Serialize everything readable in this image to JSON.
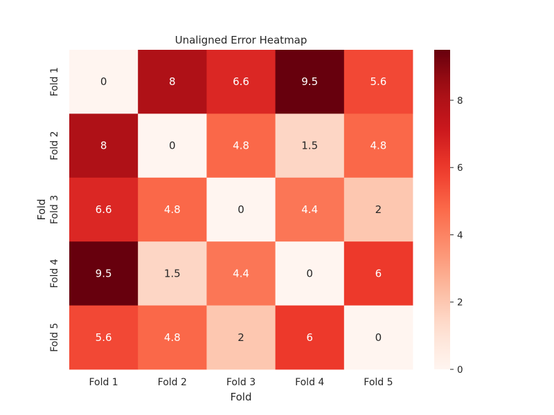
{
  "chart_data": {
    "type": "heatmap",
    "title": "Unaligned Error Heatmap",
    "xlabel": "Fold",
    "ylabel": "Fold",
    "x_categories": [
      "Fold 1",
      "Fold 2",
      "Fold 3",
      "Fold 4",
      "Fold 5"
    ],
    "y_categories": [
      "Fold 1",
      "Fold 2",
      "Fold 3",
      "Fold 4",
      "Fold 5"
    ],
    "values": [
      [
        0,
        8,
        6.6,
        9.5,
        5.6
      ],
      [
        8,
        0,
        4.8,
        1.5,
        4.8
      ],
      [
        6.6,
        4.8,
        0,
        4.4,
        2
      ],
      [
        9.5,
        1.5,
        4.4,
        0,
        6
      ],
      [
        5.6,
        4.8,
        2,
        6,
        0
      ]
    ],
    "colormap": "Reds",
    "vmin": 0,
    "vmax": 9.5,
    "colorbar_ticks": [
      0,
      2,
      4,
      6,
      8
    ],
    "annotations": true
  },
  "colors": {
    "text_dark": "#262626",
    "text_light": "#ffffff",
    "tick": "#262626"
  }
}
